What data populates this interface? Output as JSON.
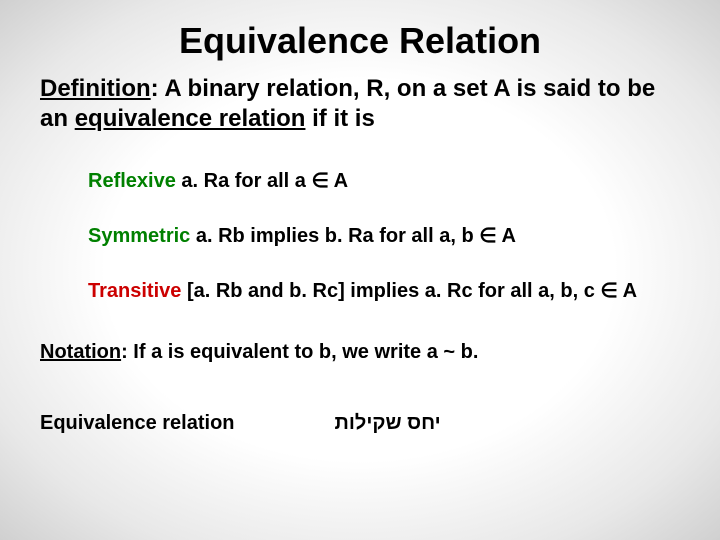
{
  "title": "Equivalence Relation",
  "definition": {
    "label": "Definition",
    "text_before": ": A binary relation, R, on a set A is said to be an ",
    "term": "equivalence relation",
    "text_after": " if it is"
  },
  "properties": [
    {
      "keyword": "Reflexive",
      "keyword_color": "#008000",
      "rest": " a. Ra for all a ∈ A"
    },
    {
      "keyword": "Symmetric",
      "keyword_color": "#008000",
      "rest": " a. Rb implies b. Ra for all a, b ∈ A"
    },
    {
      "keyword": "Transitive",
      "keyword_color": "#cc0000",
      "rest": "  [a. Rb and b. Rc] implies a. Rc for all a, b, c ∈ A"
    }
  ],
  "notation": {
    "label": "Notation",
    "text": ": If a is equivalent to b, we write a ~ b."
  },
  "footer": {
    "left": "Equivalence relation",
    "right": "יחס שקילות"
  },
  "style": {
    "title_fontsize": 36,
    "definition_fontsize": 24,
    "body_fontsize": 20,
    "text_color": "#000000",
    "green": "#008000",
    "red": "#cc0000",
    "background_center": "#ffffff",
    "background_edge": "#d0d0d0"
  }
}
